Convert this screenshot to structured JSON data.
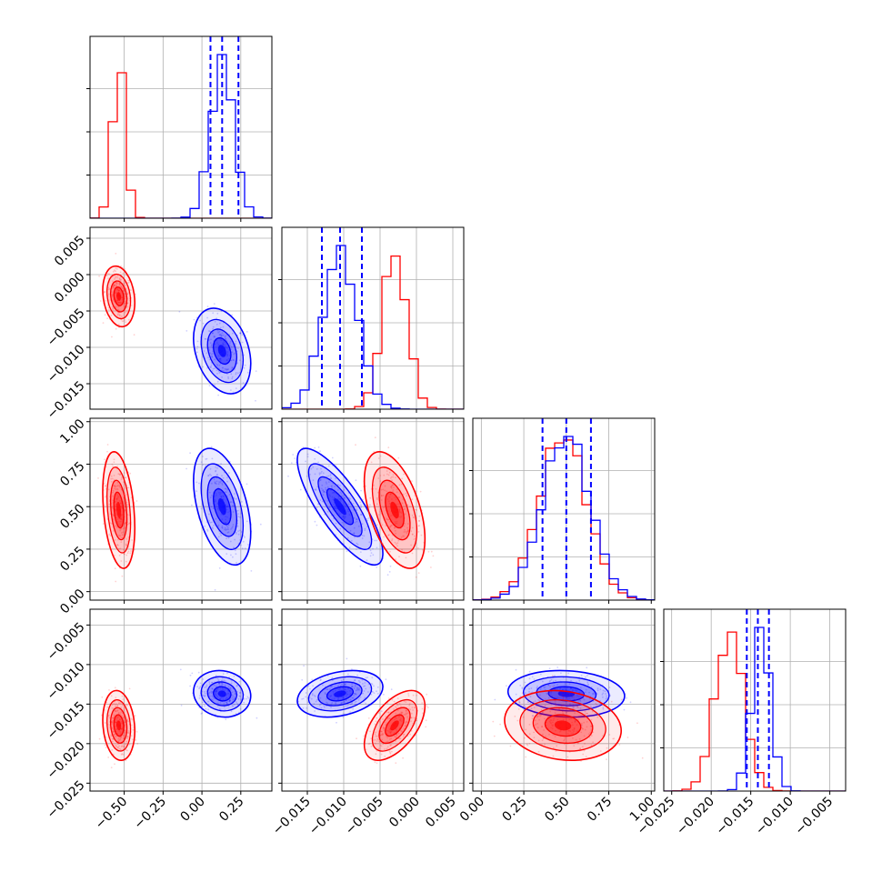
{
  "chart_data": {
    "type": "corner",
    "colors": {
      "model_a": "#0000ff",
      "model_b": "#ff0000"
    },
    "grid": true,
    "legend": "none",
    "parameters": [
      {
        "range": [
          -0.72,
          0.45
        ],
        "ticks": [
          "−0.50",
          "−0.25",
          "0.00",
          "0.25"
        ],
        "tick_values": [
          -0.5,
          -0.25,
          0.0,
          0.25
        ]
      },
      {
        "range": [
          -0.0185,
          0.0065
        ],
        "ticks": [
          "−0.015",
          "−0.010",
          "−0.005",
          "0.000",
          "0.005"
        ],
        "tick_values": [
          -0.015,
          -0.01,
          -0.005,
          0.0,
          0.005
        ]
      },
      {
        "range": [
          -0.05,
          1.02
        ],
        "ticks": [
          "0.00",
          "0.25",
          "0.50",
          "0.75",
          "1.00"
        ],
        "tick_values": [
          0.0,
          0.25,
          0.5,
          0.75,
          1.0
        ]
      },
      {
        "range": [
          -0.026,
          -0.003
        ],
        "ticks": [
          "−0.025",
          "−0.020",
          "−0.015",
          "−0.010",
          "−0.005"
        ],
        "tick_values": [
          -0.025,
          -0.02,
          -0.015,
          -0.01,
          -0.005
        ]
      }
    ],
    "series": [
      {
        "color": "#0000ff",
        "means": [
          0.13,
          -0.0105,
          0.5,
          -0.0137
        ],
        "sigmas": [
          0.075,
          0.0024,
          0.14,
          0.0012
        ],
        "quantiles": [
          [
            0.055,
            0.13,
            0.235
          ],
          [
            -0.013,
            -0.0105,
            -0.0075
          ],
          [
            0.36,
            0.5,
            0.645
          ],
          [
            -0.0155,
            -0.0141,
            -0.0127
          ]
        ],
        "correlations": {
          "1-0": -0.3,
          "2-0": -0.45,
          "2-1": -0.8,
          "3-0": -0.1,
          "3-1": 0.3,
          "3-2": -0.1
        }
      },
      {
        "color": "#ff0000",
        "means": [
          -0.535,
          -0.003,
          0.48,
          -0.0177
        ],
        "sigmas": [
          0.042,
          0.0017,
          0.14,
          0.0018
        ],
        "correlations": {
          "1-0": -0.2,
          "2-0": -0.3,
          "2-1": -0.5,
          "3-0": -0.15,
          "3-1": 0.55,
          "3-2": -0.15
        }
      }
    ]
  }
}
